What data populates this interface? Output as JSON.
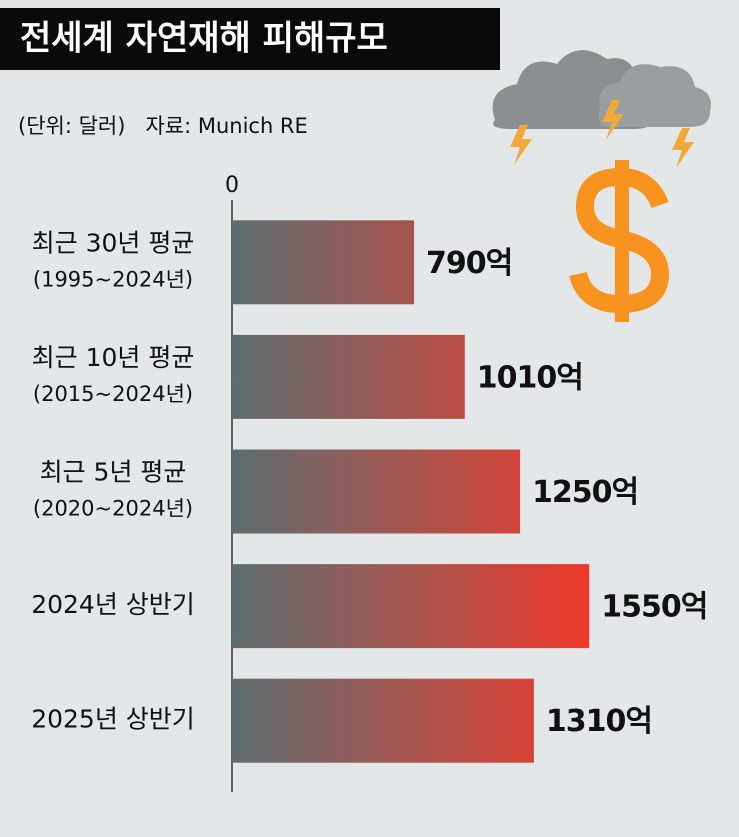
{
  "chart_data": {
    "type": "bar",
    "orientation": "horizontal",
    "title": "전세계 자연재해 피해규모",
    "subtitle": "(단위: 달러)   자료: Munich RE",
    "categories": [
      [
        "최근 30년 평균",
        "(1995~2024년)"
      ],
      [
        "최근 10년 평균",
        "(2015~2024년)"
      ],
      [
        "최근 5년 평균",
        "(2020~2024년)"
      ],
      [
        "2024년 상반기"
      ],
      [
        "2025년 상반기"
      ]
    ],
    "values": [
      790,
      1010,
      1250,
      1550,
      1310
    ],
    "value_labels": [
      "790억",
      "1010억",
      "1250억",
      "1550억",
      "1310억"
    ],
    "gradient": [
      "#5d6d70",
      "#ee3a2b"
    ],
    "xlim": [
      0,
      2200
    ],
    "xticks": [
      0
    ]
  }
}
